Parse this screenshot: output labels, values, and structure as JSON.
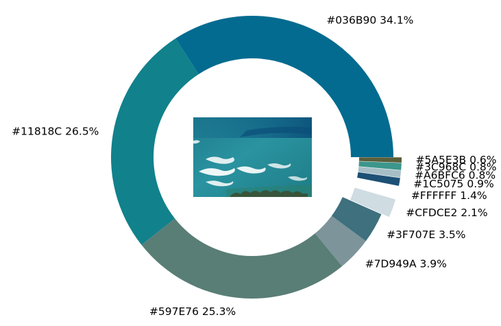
{
  "chart_data": {
    "type": "pie",
    "variant": "donut",
    "start_angle_deg": 0,
    "direction": "counterclockwise",
    "center_image": {
      "subject": "aerial photo of turquoise ocean with white waves breaking near shore",
      "colors": [
        "#036B90",
        "#11818C",
        "#597E76",
        "#FFFFFF"
      ]
    },
    "slices": [
      {
        "hex": "#036B90",
        "percent": 34.1,
        "label": "#036B90 34.1%",
        "color": "#036B90",
        "exploded": false
      },
      {
        "hex": "#11818C",
        "percent": 26.5,
        "label": "#11818C 26.5%",
        "color": "#11818C",
        "exploded": false
      },
      {
        "hex": "#597E76",
        "percent": 25.3,
        "label": "#597E76 25.3%",
        "color": "#597E76",
        "exploded": false
      },
      {
        "hex": "#7D949A",
        "percent": 3.9,
        "label": "#7D949A 3.9%",
        "color": "#7D949A",
        "exploded": false
      },
      {
        "hex": "#3F707E",
        "percent": 3.5,
        "label": "#3F707E 3.5%",
        "color": "#3F707E",
        "exploded": false
      },
      {
        "hex": "#CFDCE2",
        "percent": 2.1,
        "label": "#CFDCE2 2.1%",
        "color": "#CFDCE2",
        "exploded": true
      },
      {
        "hex": "#FFFFFF",
        "percent": 1.4,
        "label": "#FFFFFF 1.4%",
        "color": "#FFFFFF",
        "exploded": true
      },
      {
        "hex": "#1C5075",
        "percent": 0.9,
        "label": "#1C5075 0.9%",
        "color": "#1C5075",
        "exploded": true
      },
      {
        "hex": "#A6BFC6",
        "percent": 0.8,
        "label": "#A6BFC6 0.8%",
        "color": "#A6BFC6",
        "exploded": true
      },
      {
        "hex": "#3C968C",
        "percent": 0.8,
        "label": "#3C968C 0.8%",
        "color": "#3C968C",
        "exploded": true
      },
      {
        "hex": "#5A5E3B",
        "percent": 0.6,
        "label": "#5A5E3B 0.6%",
        "color": "#5A5E3B",
        "exploded": true
      }
    ]
  }
}
